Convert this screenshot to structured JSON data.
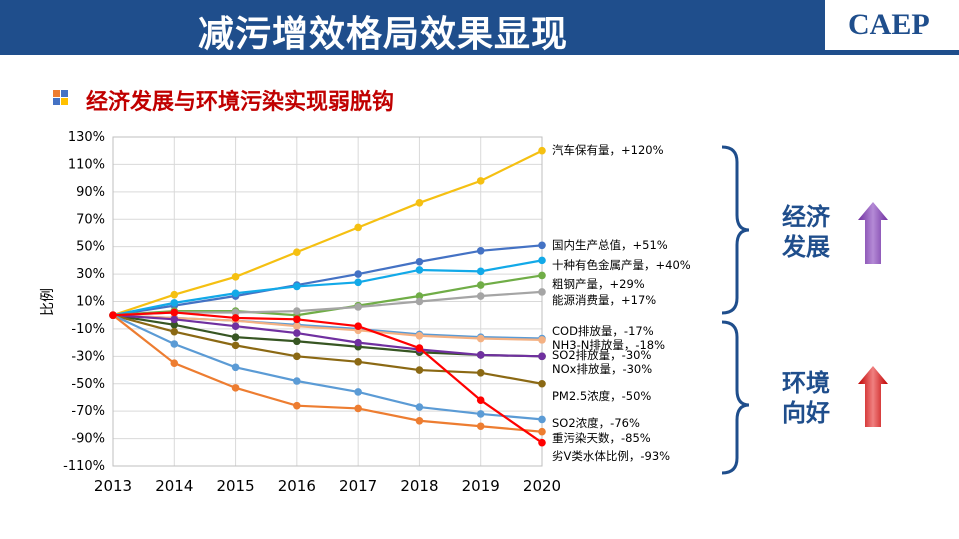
{
  "header": {
    "title": "减污增效格局效果显现",
    "logo": "CAEP"
  },
  "subtitle": "经济发展与环境污染实现弱脱钩",
  "groups": {
    "economy": {
      "line1": "经济",
      "line2": "发展",
      "arrow": "up-arrow",
      "color": "#7030a0"
    },
    "environment": {
      "line1": "环境",
      "line2": "向好",
      "arrow": "up-arrow",
      "color": "#c00000"
    }
  },
  "chart_data": {
    "type": "line",
    "x": [
      "2013",
      "2014",
      "2015",
      "2016",
      "2017",
      "2018",
      "2019",
      "2020"
    ],
    "ylabel": "比例",
    "ylim": [
      -110,
      130
    ],
    "yticks": [
      "130%",
      "110%",
      "90%",
      "70%",
      "50%",
      "30%",
      "10%",
      "-10%",
      "-30%",
      "-50%",
      "-70%",
      "-90%",
      "-110%"
    ],
    "grid": true,
    "series": [
      {
        "name": "汽车保有量，+120%",
        "color": "#f5c012",
        "values": [
          0,
          15,
          28,
          46,
          64,
          82,
          98,
          120
        ]
      },
      {
        "name": "国内生产总值，+51%",
        "color": "#4472c4",
        "values": [
          0,
          7,
          14,
          22,
          30,
          39,
          47,
          51
        ]
      },
      {
        "name": "十种有色金属产量，+40%",
        "color": "#12a9e8",
        "values": [
          0,
          9,
          16,
          21,
          24,
          33,
          32,
          40
        ]
      },
      {
        "name": "粗钢产量，+29%",
        "color": "#70ad47",
        "values": [
          0,
          3,
          3,
          0,
          7,
          14,
          22,
          29
        ]
      },
      {
        "name": "能源消费量，+17%",
        "color": "#a5a5a5",
        "values": [
          0,
          2,
          2,
          3,
          6,
          10,
          14,
          17
        ]
      },
      {
        "name": "COD排放量，-17%",
        "color": "#5b9bd5",
        "values": [
          0,
          -2,
          -4,
          -7,
          -10,
          -14,
          -16,
          -17
        ]
      },
      {
        "name": "NH3-N排放量，-18%",
        "color": "#f4b183",
        "values": [
          0,
          -2,
          -4,
          -8,
          -11,
          -15,
          -17,
          -18
        ]
      },
      {
        "name": "SO2排放量，-30%",
        "color": "#375623",
        "values": [
          0,
          -7,
          -16,
          -19,
          -23,
          -27,
          -29,
          -30
        ]
      },
      {
        "name": "NOx排放量，-30%",
        "color": "#7030a0",
        "values": [
          0,
          -3,
          -8,
          -13,
          -20,
          -25,
          -29,
          -30
        ]
      },
      {
        "name": "PM2.5浓度，-50%",
        "color": "#8b6914",
        "values": [
          0,
          -12,
          -22,
          -30,
          -34,
          -40,
          -42,
          -50
        ]
      },
      {
        "name": "SO2浓度，-76%",
        "color": "#5b9bd5",
        "values": [
          0,
          -21,
          -38,
          -48,
          -56,
          -67,
          -72,
          -76
        ]
      },
      {
        "name": "重污染天数，-85%",
        "color": "#ed7d31",
        "values": [
          0,
          -35,
          -53,
          -66,
          -68,
          -77,
          -81,
          -85
        ]
      },
      {
        "name": "劣Ⅴ类水体比例，-93%",
        "color": "#ff0000",
        "values": [
          0,
          2,
          -2,
          -3,
          -8,
          -24,
          -62,
          -93
        ]
      }
    ]
  }
}
